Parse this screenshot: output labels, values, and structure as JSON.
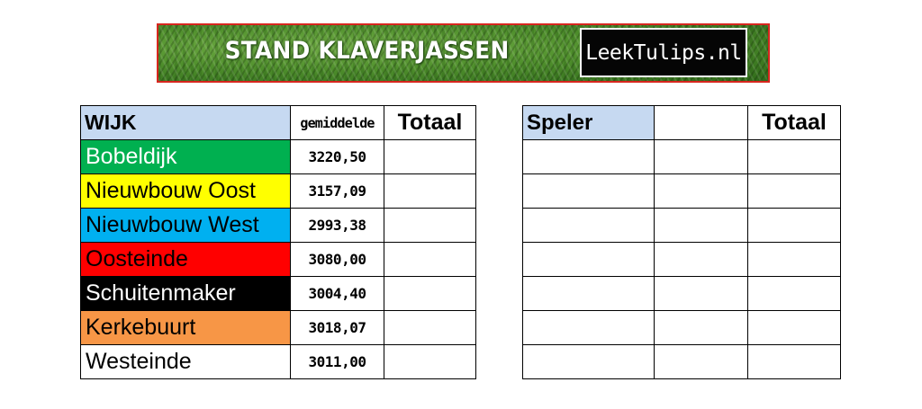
{
  "banner": {
    "title": "STAND KLAVERJASSEN",
    "logo_text": "LeekTulips.nl"
  },
  "wijk_table": {
    "headers": {
      "wijk": "WIJK",
      "gemiddelde": "gemiddelde",
      "totaal": "Totaal"
    },
    "rows": [
      {
        "name": "Bobeldijk",
        "gemiddelde": "3220,50",
        "totaal": "",
        "bg": "#00b050",
        "fg": "#ffffff"
      },
      {
        "name": "Nieuwbouw Oost",
        "gemiddelde": "3157,09",
        "totaal": "",
        "bg": "#ffff00",
        "fg": "#000000"
      },
      {
        "name": "Nieuwbouw West",
        "gemiddelde": "2993,38",
        "totaal": "",
        "bg": "#00b0f0",
        "fg": "#000000"
      },
      {
        "name": "Oosteinde",
        "gemiddelde": "3080,00",
        "totaal": "",
        "bg": "#ff0000",
        "fg": "#000000"
      },
      {
        "name": "Schuitenmaker",
        "gemiddelde": "3004,40",
        "totaal": "",
        "bg": "#000000",
        "fg": "#ffffff"
      },
      {
        "name": "Kerkebuurt",
        "gemiddelde": "3018,07",
        "totaal": "",
        "bg": "#f79646",
        "fg": "#000000"
      },
      {
        "name": "Westeinde",
        "gemiddelde": "3011,00",
        "totaal": "",
        "bg": "#ffffff",
        "fg": "#000000"
      }
    ]
  },
  "speler_table": {
    "headers": {
      "speler": "Speler",
      "middle": "",
      "totaal": "Totaal"
    },
    "rows": [
      {
        "speler": "",
        "middle": "",
        "totaal": ""
      },
      {
        "speler": "",
        "middle": "",
        "totaal": ""
      },
      {
        "speler": "",
        "middle": "",
        "totaal": ""
      },
      {
        "speler": "",
        "middle": "",
        "totaal": ""
      },
      {
        "speler": "",
        "middle": "",
        "totaal": ""
      },
      {
        "speler": "",
        "middle": "",
        "totaal": ""
      },
      {
        "speler": "",
        "middle": "",
        "totaal": ""
      }
    ]
  }
}
